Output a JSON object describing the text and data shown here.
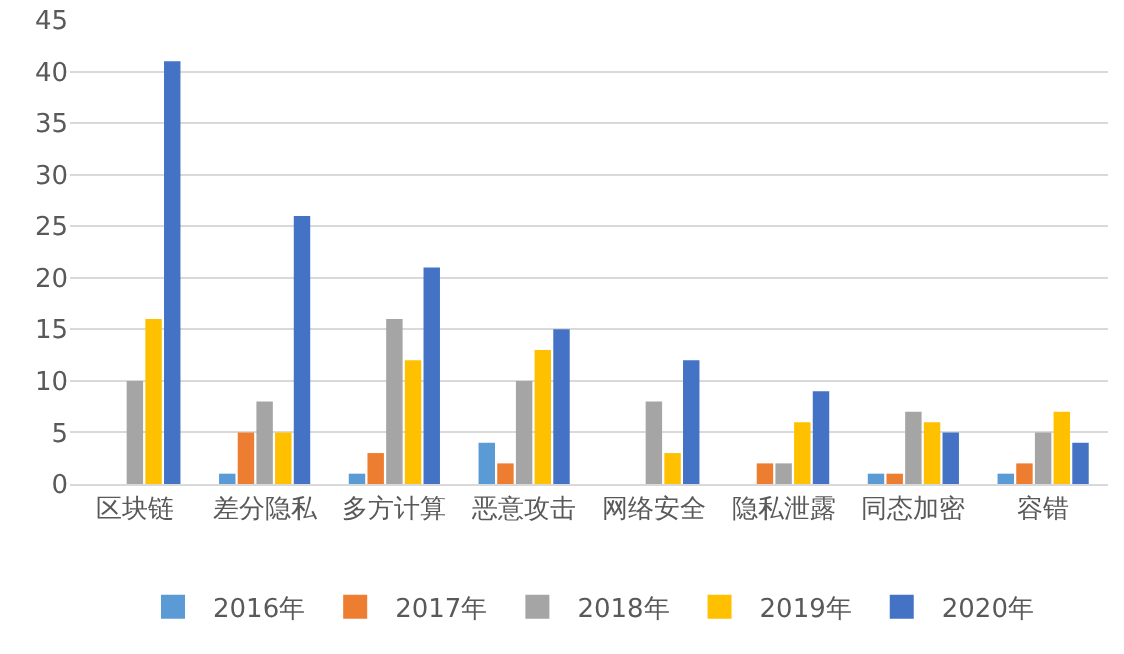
{
  "chart_data": {
    "type": "bar",
    "categories": [
      "区块链",
      "差分隐私",
      "多方计算",
      "恶意攻击",
      "网络安全",
      "隐私泄露",
      "同态加密",
      "容错"
    ],
    "series": [
      {
        "name": "2016年",
        "color": "#5b9bd5",
        "values": [
          0,
          1,
          1,
          4,
          0,
          0,
          1,
          1
        ]
      },
      {
        "name": "2017年",
        "color": "#ed7d31",
        "values": [
          0,
          5,
          3,
          2,
          0,
          2,
          1,
          2
        ]
      },
      {
        "name": "2018年",
        "color": "#a5a5a5",
        "values": [
          10,
          8,
          16,
          10,
          8,
          2,
          7,
          5
        ]
      },
      {
        "name": "2019年",
        "color": "#ffc000",
        "values": [
          16,
          5,
          12,
          13,
          3,
          6,
          6,
          7
        ]
      },
      {
        "name": "2020年",
        "color": "#4472c4",
        "values": [
          41,
          26,
          21,
          15,
          12,
          9,
          5,
          4
        ]
      }
    ],
    "ylim": [
      0,
      45
    ],
    "yticks": [
      0,
      5,
      10,
      15,
      20,
      25,
      30,
      35,
      40,
      45
    ],
    "grid": "y",
    "legend": "bottom"
  }
}
